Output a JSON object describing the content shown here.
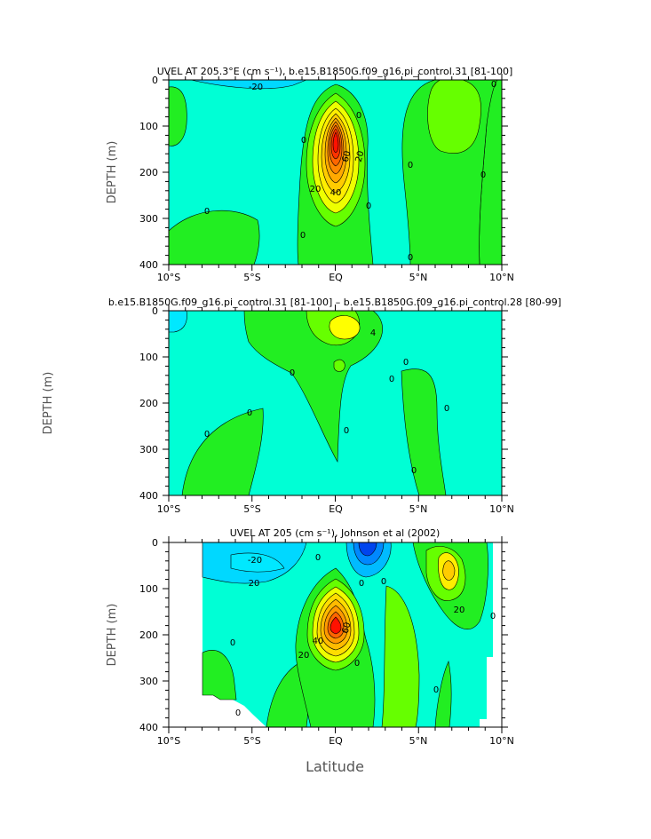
{
  "chart_data": [
    {
      "type": "heatmap",
      "title": "UVEL AT 205.3°E (cm s⁻¹), b.e15.B1850G.f09_g16.pi_control.31 [81-100]",
      "ylabel": "DEPTH (m)",
      "xlabel": "",
      "x_ticks": [
        "10°S",
        "5°S",
        "EQ",
        "5°N",
        "10°N"
      ],
      "y_ticks": [
        "0",
        "100",
        "200",
        "300",
        "400"
      ],
      "xlim": [
        -10,
        10
      ],
      "ylim": [
        400,
        0
      ],
      "contour_labels": [
        "-20",
        "0",
        "0",
        "0",
        "0",
        "0",
        "0",
        "20",
        "20",
        "40",
        "60",
        "0",
        "0",
        "0"
      ],
      "colors": {
        "cyan": "#00ffd5",
        "lightblue": "#00d8ff",
        "green": "#22ee22",
        "lime": "#66ff00",
        "yellow": "#ffff00",
        "gold": "#ffcc00",
        "orange": "#ff9900",
        "darkorange": "#ff6600",
        "red": "#ff1100"
      }
    },
    {
      "type": "heatmap",
      "title": "b.e15.B1850G.f09_g16.pi_control.31 [81-100] – b.e15.B1850G.f09_g16.pi_control.28 [80-99]",
      "ylabel": "DEPTH (m)",
      "xlabel": "",
      "x_ticks": [
        "10°S",
        "5°S",
        "EQ",
        "5°N",
        "10°N"
      ],
      "y_ticks": [
        "0",
        "100",
        "200",
        "300",
        "400"
      ],
      "xlim": [
        -10,
        10
      ],
      "ylim": [
        400,
        0
      ],
      "contour_labels": [
        "4",
        "0",
        "0",
        "0",
        "0",
        "0",
        "0",
        "0",
        "0"
      ],
      "colors": {
        "cyan": "#00ffd5",
        "lightblue": "#00e8ff",
        "green": "#22ee22",
        "lime": "#66ff00",
        "yellow": "#ffff00"
      }
    },
    {
      "type": "heatmap",
      "title": "UVEL AT 205 (cm s⁻¹), Johnson et al (2002)",
      "ylabel": "DEPTH (m)",
      "xlabel": "Latitude",
      "x_ticks": [
        "10°S",
        "5°S",
        "EQ",
        "5°N",
        "10°N"
      ],
      "y_ticks": [
        "0",
        "100",
        "200",
        "300",
        "400"
      ],
      "xlim": [
        -10,
        10
      ],
      "ylim": [
        400,
        0
      ],
      "contour_labels": [
        "-20",
        "0",
        "0",
        "0",
        "0",
        "20",
        "20",
        "40",
        "60",
        "20",
        "0",
        "0",
        "0",
        "0"
      ],
      "colors": {
        "cyan": "#00ffd5",
        "lightblue": "#00d8ff",
        "blue": "#0088ff",
        "darkblue": "#0044ee",
        "green": "#22ee22",
        "lime": "#66ff00",
        "yellow": "#ffff00",
        "gold": "#ffcc00",
        "orange": "#ff9900",
        "red": "#ff1100"
      }
    }
  ]
}
